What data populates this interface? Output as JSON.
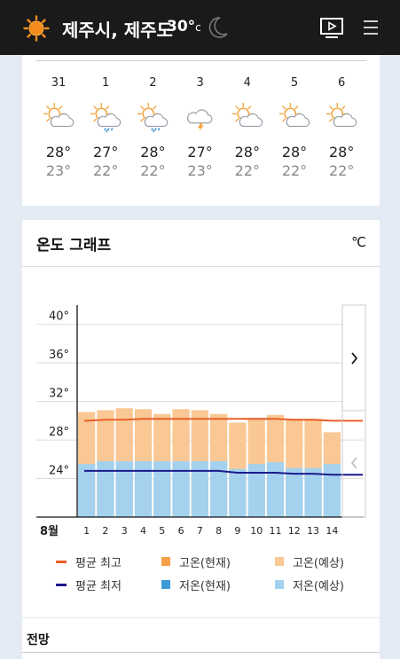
{
  "header": {
    "location": "제주시, 제주도",
    "temperature": "30°",
    "temp_unit": "c",
    "colors": {
      "bar": "#1a1a1a",
      "sun": "#f28b1b"
    }
  },
  "forecast": {
    "days": [
      {
        "date": "31",
        "icon": "partly-cloudy-icon",
        "high": "28°",
        "low": "23°"
      },
      {
        "date": "1",
        "icon": "cloudy-rain-icon",
        "high": "27°",
        "low": "22°"
      },
      {
        "date": "2",
        "icon": "cloudy-rain-icon",
        "high": "28°",
        "low": "22°"
      },
      {
        "date": "3",
        "icon": "thunder-cloud-icon",
        "high": "27°",
        "low": "23°"
      },
      {
        "date": "4",
        "icon": "partly-cloudy-icon",
        "high": "28°",
        "low": "22°"
      },
      {
        "date": "5",
        "icon": "partly-cloudy-icon",
        "high": "28°",
        "low": "22°"
      },
      {
        "date": "6",
        "icon": "partly-cloudy-icon",
        "high": "28°",
        "low": "22°"
      }
    ]
  },
  "graph": {
    "title": "온도 그래프",
    "unit": "℃",
    "month_label": "8월",
    "next_icon": "chevron-right-icon",
    "prev_icon": "chevron-left-icon"
  },
  "chart_data": {
    "type": "bar",
    "categories": [
      "1",
      "2",
      "3",
      "4",
      "5",
      "6",
      "7",
      "8",
      "9",
      "10",
      "11",
      "12",
      "13",
      "14"
    ],
    "y_ticks": [
      "40°",
      "36°",
      "32°",
      "28°",
      "24°"
    ],
    "ylim": [
      20,
      42
    ],
    "series": [
      {
        "name": "고온(예상)",
        "type": "bar",
        "color": "#f9c894",
        "values": [
          30.9,
          31.1,
          31.3,
          31.2,
          30.7,
          31.2,
          31.1,
          30.7,
          29.8,
          30.3,
          30.6,
          30.2,
          30.2,
          28.8
        ]
      },
      {
        "name": "저온(예상)",
        "type": "bar",
        "color": "#a3d1ee",
        "values": [
          25.5,
          25.8,
          25.8,
          25.8,
          25.8,
          25.8,
          25.8,
          25.8,
          25.0,
          25.5,
          25.7,
          25.1,
          25.1,
          25.5
        ]
      },
      {
        "name": "평균 최고",
        "type": "line",
        "color": "#e8602a",
        "values": [
          30.0,
          30.1,
          30.1,
          30.2,
          30.2,
          30.2,
          30.2,
          30.2,
          30.2,
          30.2,
          30.2,
          30.1,
          30.1,
          30.0
        ]
      },
      {
        "name": "평균 최저",
        "type": "line",
        "color": "#1c1a8c",
        "values": [
          24.8,
          24.8,
          24.8,
          24.8,
          24.8,
          24.8,
          24.8,
          24.8,
          24.6,
          24.6,
          24.6,
          24.5,
          24.5,
          24.4
        ]
      }
    ],
    "legend": [
      {
        "label": "평균 최고",
        "kind": "line",
        "color": "#e8602a"
      },
      {
        "label": "고온(현재)",
        "kind": "box",
        "color": "#f7a04a"
      },
      {
        "label": "고온(예상)",
        "kind": "box",
        "color": "#f9c894"
      },
      {
        "label": "평균 최저",
        "kind": "line",
        "color": "#1c1a8c"
      },
      {
        "label": "저온(현재)",
        "kind": "box",
        "color": "#3d9ad8"
      },
      {
        "label": "저온(예상)",
        "kind": "box",
        "color": "#a3d1ee"
      }
    ],
    "legend_position": "bottom",
    "grid": true
  },
  "outlook": {
    "title": "전망"
  }
}
